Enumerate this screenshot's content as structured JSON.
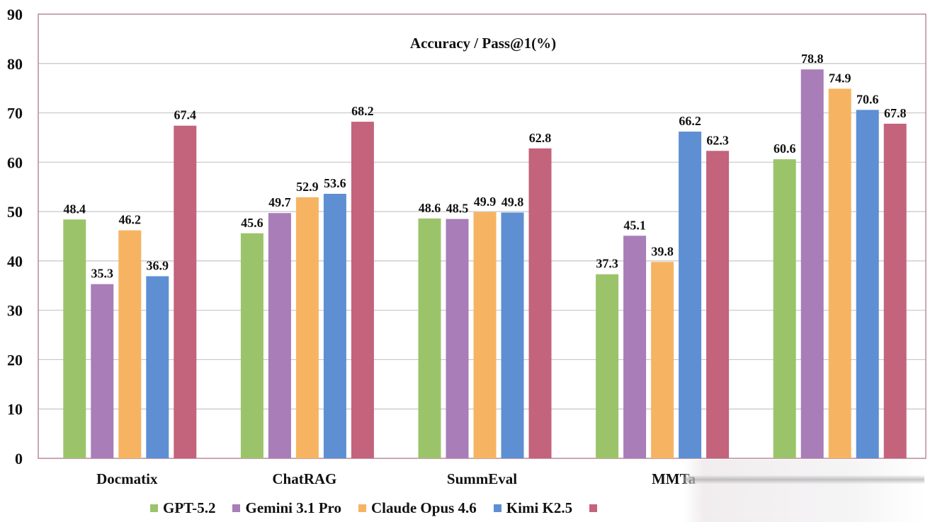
{
  "chart_data": {
    "type": "bar",
    "title": "Accuracy / Pass@1(%)",
    "xlabel": "",
    "ylabel": "",
    "ylim": [
      0,
      90
    ],
    "yticks": [
      0,
      10,
      20,
      30,
      40,
      50,
      60,
      70,
      80,
      90
    ],
    "grid": true,
    "legend_position": "bottom",
    "categories": [
      "Docmatix",
      "ChatRAG",
      "SummEval",
      "MMTa",
      ""
    ],
    "series": [
      {
        "name": "GPT-5.2",
        "color": "#9bc46a",
        "values": [
          48.4,
          45.6,
          48.6,
          37.3,
          60.6
        ]
      },
      {
        "name": "Gemini 3.1 Pro",
        "color": "#a87db8",
        "values": [
          35.3,
          49.7,
          48.5,
          45.1,
          78.8
        ]
      },
      {
        "name": "Claude Opus 4.6",
        "color": "#f6b462",
        "values": [
          46.2,
          52.9,
          49.9,
          39.8,
          74.9
        ]
      },
      {
        "name": "Kimi K2.5",
        "color": "#5e8fd3",
        "values": [
          36.9,
          53.6,
          49.8,
          66.2,
          70.6
        ]
      },
      {
        "name": "",
        "color": "#c3637c",
        "values": [
          67.4,
          68.2,
          62.8,
          62.3,
          67.8
        ]
      }
    ]
  }
}
